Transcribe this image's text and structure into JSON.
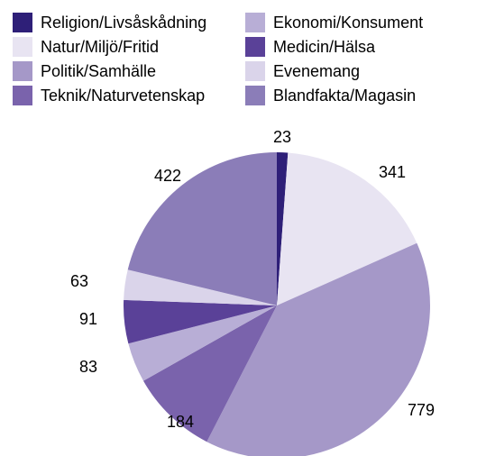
{
  "chart_data": {
    "type": "pie",
    "title": "",
    "categories": [
      "Religion/Livsåskådning",
      "Natur/Miljö/Fritid",
      "Politik/Samhälle",
      "Teknik/Naturvetenskap",
      "Ekonomi/Konsument",
      "Medicin/Hälsa",
      "Evenemang",
      "Blandfakta/Magasin"
    ],
    "values": [
      23,
      341,
      779,
      184,
      83,
      91,
      63,
      422
    ],
    "value_labels": [
      "23",
      "341",
      "779",
      "184",
      "83",
      "91",
      "63",
      "422"
    ],
    "colors": [
      "#2e1f78",
      "#e8e4f2",
      "#a598c8",
      "#7a63ac",
      "#b8aed6",
      "#5a4198",
      "#dad4ea",
      "#8b7db8"
    ],
    "legend_position": "top",
    "start_angle_deg": 0,
    "direction": "clockwise"
  }
}
